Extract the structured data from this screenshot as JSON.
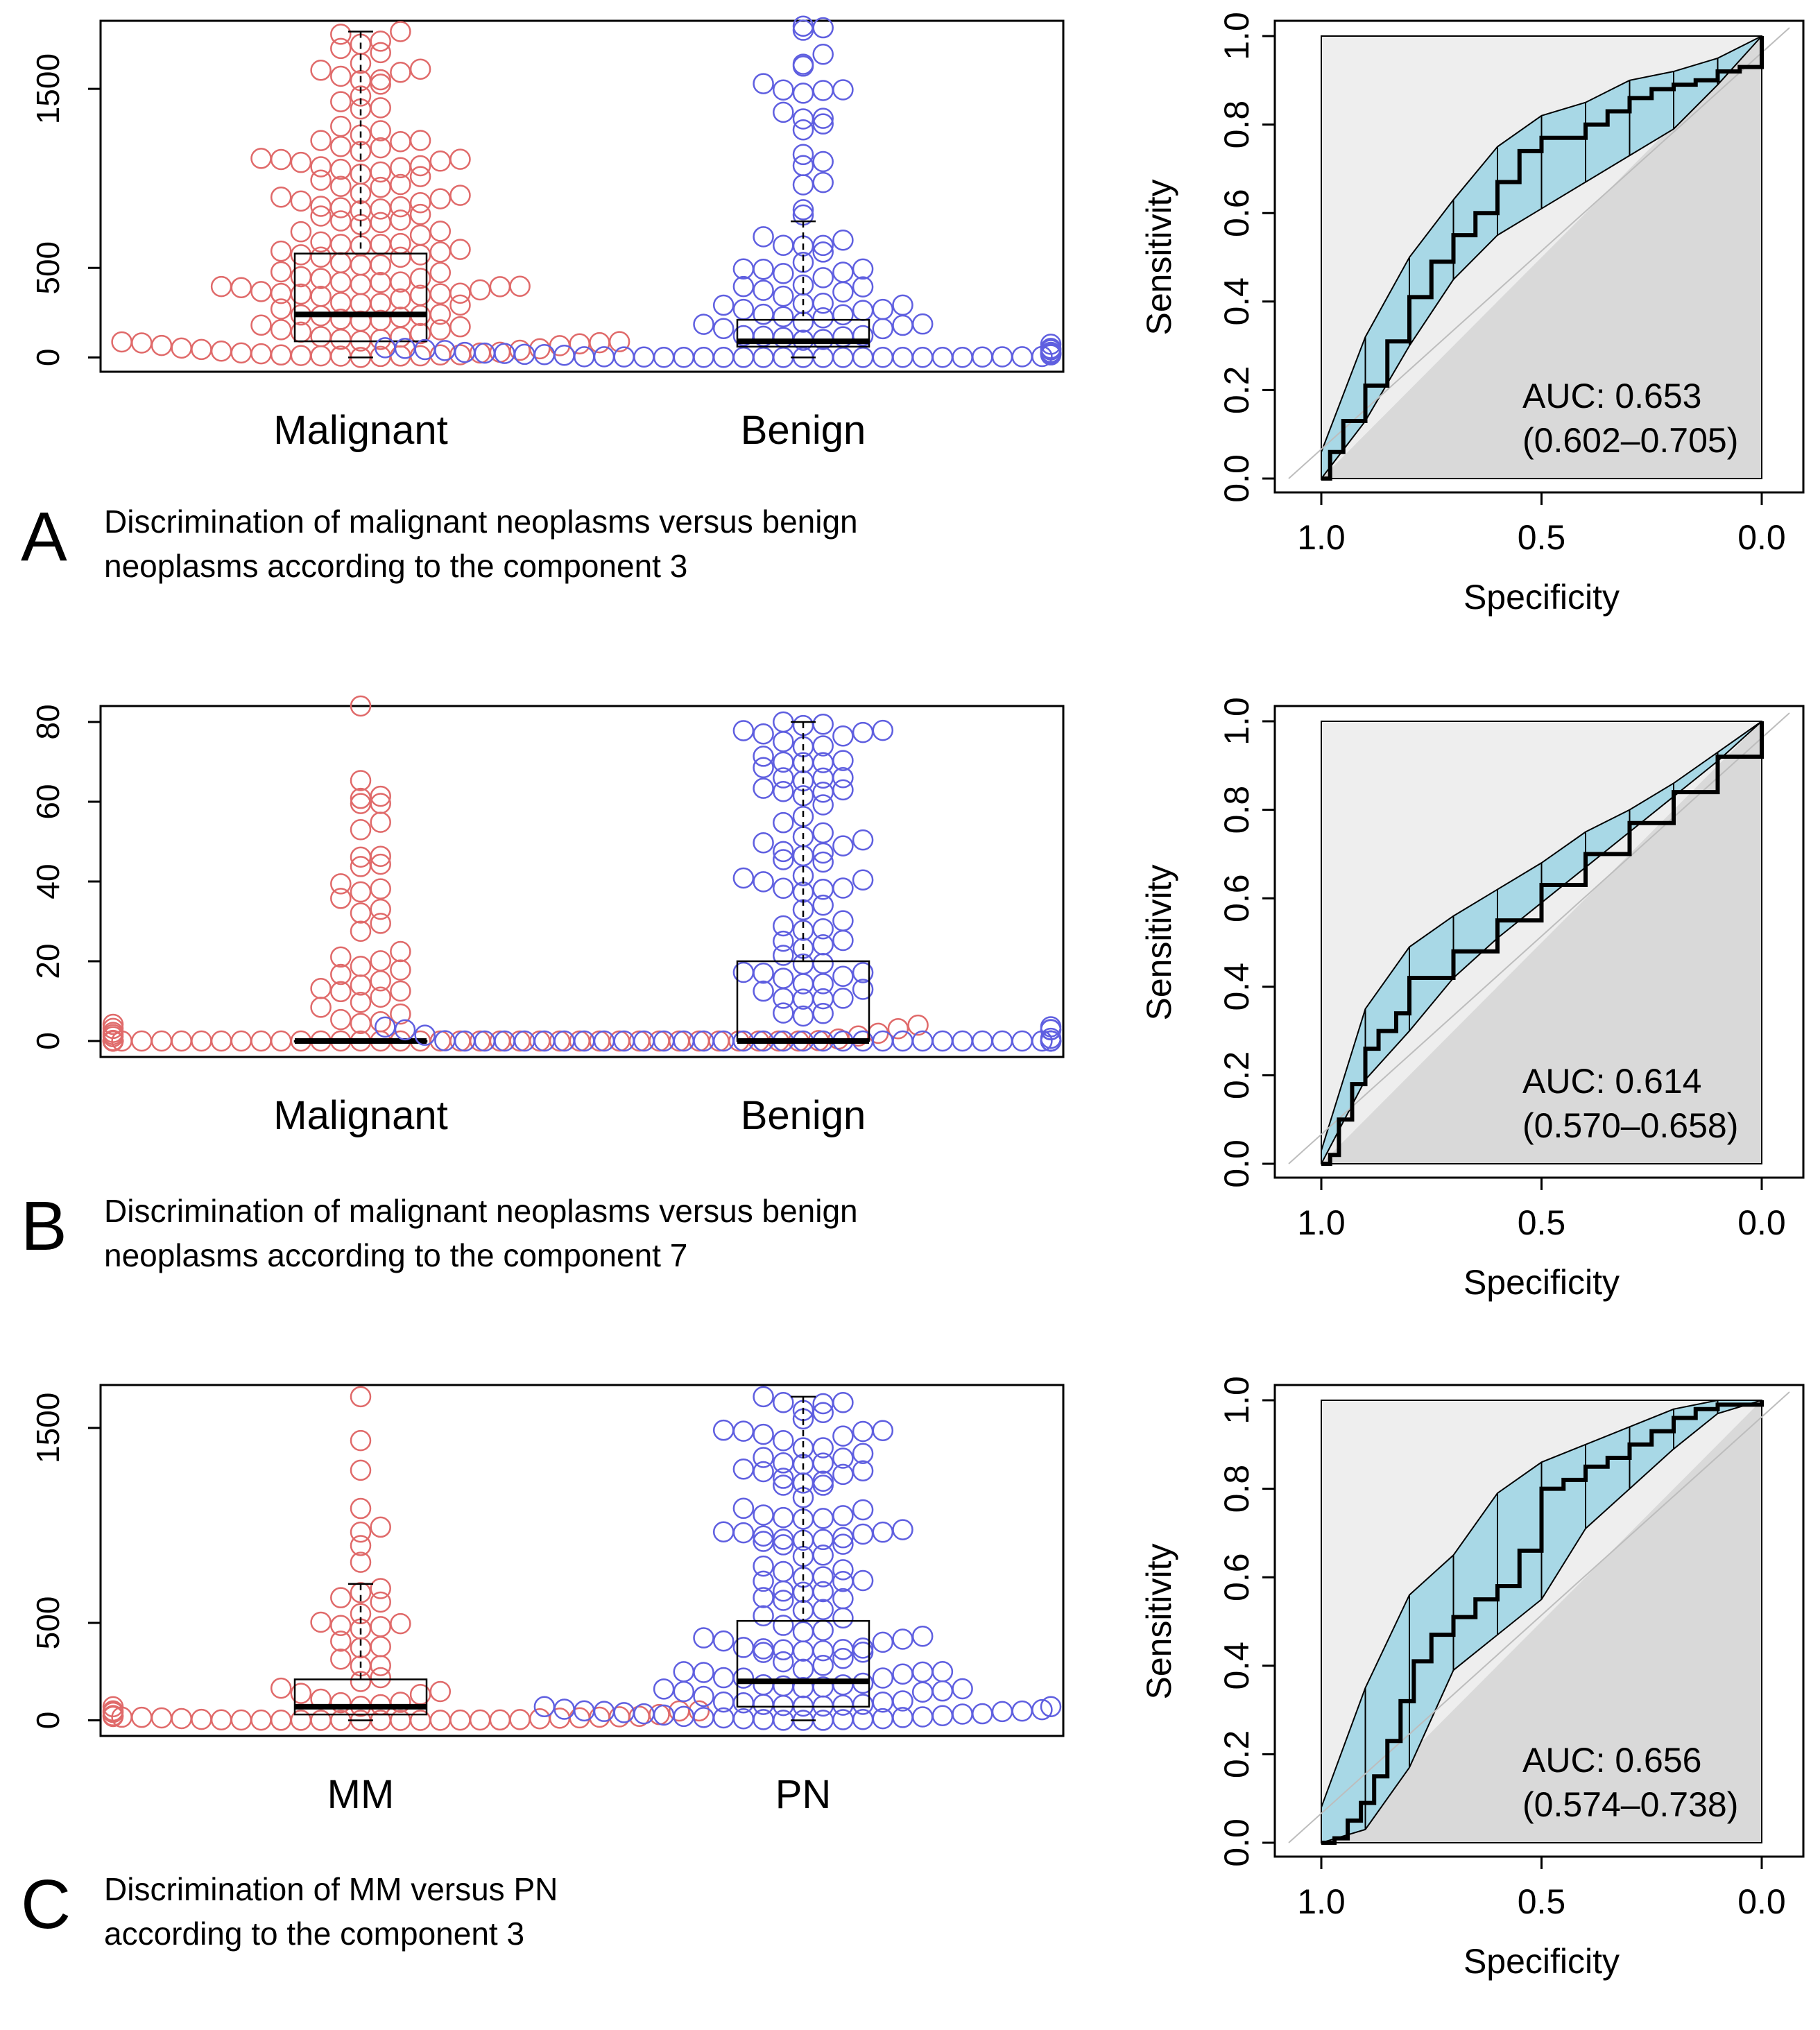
{
  "panels": [
    {
      "letter": "A",
      "caption_lines": [
        "Discrimination of malignant neoplasms versus benign",
        "neoplasms according to the component 3"
      ],
      "beeswarm": {
        "y_ticks": [
          "0",
          "500",
          "1500"
        ],
        "y_tick_values": [
          0,
          500,
          1500
        ],
        "ylim": [
          -80,
          1880
        ],
        "groups": [
          {
            "label": "Malignant",
            "color": "#e06a6a",
            "box": {
              "q1": 90,
              "median": 240,
              "q3": 580,
              "whisker_low": 0,
              "whisker_high": 1820
            },
            "n": 150,
            "max": 1820,
            "seed": 11,
            "dist": "wide"
          },
          {
            "label": "Benign",
            "color": "#5f5fe0",
            "box": {
              "q1": 60,
              "median": 90,
              "q3": 210,
              "whisker_low": 0,
              "whisker_high": 760
            },
            "n": 110,
            "max": 1850,
            "seed": 23,
            "dist": "low"
          }
        ]
      },
      "roc": {
        "auc_label": "AUC: 0.653",
        "ci_label": "(0.602–0.705)",
        "x_ticks": [
          "1.0",
          "0.5",
          "0.0"
        ],
        "y_ticks": [
          "0.0",
          "0.2",
          "0.4",
          "0.6",
          "0.8",
          "1.0"
        ],
        "xlabel": "Specificity",
        "ylabel": "Sensitivity",
        "curve": [
          [
            1.0,
            0.0
          ],
          [
            0.98,
            0.06
          ],
          [
            0.95,
            0.13
          ],
          [
            0.9,
            0.21
          ],
          [
            0.85,
            0.31
          ],
          [
            0.8,
            0.41
          ],
          [
            0.75,
            0.49
          ],
          [
            0.7,
            0.55
          ],
          [
            0.65,
            0.6
          ],
          [
            0.6,
            0.67
          ],
          [
            0.55,
            0.74
          ],
          [
            0.5,
            0.77
          ],
          [
            0.45,
            0.77
          ],
          [
            0.4,
            0.8
          ],
          [
            0.35,
            0.83
          ],
          [
            0.3,
            0.86
          ],
          [
            0.25,
            0.88
          ],
          [
            0.2,
            0.89
          ],
          [
            0.15,
            0.9
          ],
          [
            0.1,
            0.92
          ],
          [
            0.05,
            0.93
          ],
          [
            0.0,
            1.0
          ]
        ],
        "ci_upper": [
          [
            1.0,
            0.06
          ],
          [
            0.9,
            0.32
          ],
          [
            0.8,
            0.5
          ],
          [
            0.7,
            0.63
          ],
          [
            0.6,
            0.75
          ],
          [
            0.5,
            0.82
          ],
          [
            0.4,
            0.85
          ],
          [
            0.3,
            0.9
          ],
          [
            0.2,
            0.92
          ],
          [
            0.1,
            0.95
          ],
          [
            0.0,
            1.0
          ]
        ],
        "ci_lower": [
          [
            1.0,
            0.0
          ],
          [
            0.9,
            0.13
          ],
          [
            0.8,
            0.3
          ],
          [
            0.7,
            0.45
          ],
          [
            0.6,
            0.55
          ],
          [
            0.5,
            0.61
          ],
          [
            0.4,
            0.67
          ],
          [
            0.3,
            0.73
          ],
          [
            0.2,
            0.79
          ],
          [
            0.1,
            0.89
          ],
          [
            0.0,
            1.0
          ]
        ]
      }
    },
    {
      "letter": "B",
      "caption_lines": [
        "Discrimination of malignant neoplasms versus benign",
        "neoplasms according to the component 7"
      ],
      "beeswarm": {
        "y_ticks": [
          "0",
          "20",
          "40",
          "60",
          "80"
        ],
        "y_tick_values": [
          0,
          20,
          40,
          60,
          80
        ],
        "ylim": [
          -4,
          84
        ],
        "groups": [
          {
            "label": "Malignant",
            "color": "#e06a6a",
            "box": {
              "q1": 0,
              "median": 0,
              "q3": 0,
              "whisker_low": 0,
              "whisker_high": 0
            },
            "n": 95,
            "max": 84,
            "seed": 37,
            "dist": "zeros"
          },
          {
            "label": "Benign",
            "color": "#5f5fe0",
            "box": {
              "q1": 0,
              "median": 0,
              "q3": 20,
              "whisker_low": 0,
              "whisker_high": 80
            },
            "n": 120,
            "max": 80,
            "seed": 41,
            "dist": "zeros2"
          }
        ]
      },
      "roc": {
        "auc_label": "AUC: 0.614",
        "ci_label": "(0.570–0.658)",
        "x_ticks": [
          "1.0",
          "0.5",
          "0.0"
        ],
        "y_ticks": [
          "0.0",
          "0.2",
          "0.4",
          "0.6",
          "0.8",
          "1.0"
        ],
        "xlabel": "Specificity",
        "ylabel": "Sensitivity",
        "curve": [
          [
            1.0,
            0.0
          ],
          [
            0.98,
            0.02
          ],
          [
            0.96,
            0.1
          ],
          [
            0.93,
            0.18
          ],
          [
            0.9,
            0.26
          ],
          [
            0.87,
            0.3
          ],
          [
            0.83,
            0.34
          ],
          [
            0.8,
            0.42
          ],
          [
            0.7,
            0.48
          ],
          [
            0.6,
            0.55
          ],
          [
            0.5,
            0.63
          ],
          [
            0.4,
            0.7
          ],
          [
            0.3,
            0.77
          ],
          [
            0.2,
            0.84
          ],
          [
            0.1,
            0.92
          ],
          [
            0.0,
            1.0
          ]
        ],
        "ci_upper": [
          [
            1.0,
            0.03
          ],
          [
            0.9,
            0.35
          ],
          [
            0.8,
            0.49
          ],
          [
            0.7,
            0.56
          ],
          [
            0.6,
            0.62
          ],
          [
            0.5,
            0.68
          ],
          [
            0.4,
            0.75
          ],
          [
            0.3,
            0.8
          ],
          [
            0.2,
            0.86
          ],
          [
            0.1,
            0.93
          ],
          [
            0.0,
            1.0
          ]
        ],
        "ci_lower": [
          [
            1.0,
            0.0
          ],
          [
            0.9,
            0.19
          ],
          [
            0.8,
            0.3
          ],
          [
            0.7,
            0.42
          ],
          [
            0.6,
            0.51
          ],
          [
            0.5,
            0.59
          ],
          [
            0.4,
            0.67
          ],
          [
            0.3,
            0.75
          ],
          [
            0.2,
            0.83
          ],
          [
            0.1,
            0.91
          ],
          [
            0.0,
            1.0
          ]
        ]
      }
    },
    {
      "letter": "C",
      "caption_lines": [
        "Discrimination of MM versus PN",
        "according to the component 3"
      ],
      "beeswarm": {
        "y_ticks": [
          "0",
          "500",
          "1500"
        ],
        "y_tick_values": [
          0,
          500,
          1500
        ],
        "ylim": [
          -80,
          1720
        ],
        "groups": [
          {
            "label": "MM",
            "color": "#e06a6a",
            "box": {
              "q1": 30,
              "median": 70,
              "q3": 210,
              "whisker_low": 0,
              "whisker_high": 700
            },
            "n": 70,
            "max": 1660,
            "seed": 53,
            "dist": "low"
          },
          {
            "label": "PN",
            "color": "#5f5fe0",
            "box": {
              "q1": 70,
              "median": 200,
              "q3": 510,
              "whisker_low": 0,
              "whisker_high": 1660
            },
            "n": 150,
            "max": 1660,
            "seed": 67,
            "dist": "wide"
          }
        ]
      },
      "roc": {
        "auc_label": "AUC: 0.656",
        "ci_label": "(0.574–0.738)",
        "x_ticks": [
          "1.0",
          "0.5",
          "0.0"
        ],
        "y_ticks": [
          "0.0",
          "0.2",
          "0.4",
          "0.6",
          "0.8",
          "1.0"
        ],
        "xlabel": "Specificity",
        "ylabel": "Sensitivity",
        "curve": [
          [
            1.0,
            0.0
          ],
          [
            0.97,
            0.01
          ],
          [
            0.94,
            0.05
          ],
          [
            0.91,
            0.09
          ],
          [
            0.88,
            0.15
          ],
          [
            0.85,
            0.23
          ],
          [
            0.82,
            0.32
          ],
          [
            0.79,
            0.41
          ],
          [
            0.75,
            0.47
          ],
          [
            0.7,
            0.51
          ],
          [
            0.65,
            0.55
          ],
          [
            0.6,
            0.58
          ],
          [
            0.55,
            0.66
          ],
          [
            0.5,
            0.8
          ],
          [
            0.45,
            0.82
          ],
          [
            0.4,
            0.85
          ],
          [
            0.35,
            0.87
          ],
          [
            0.3,
            0.9
          ],
          [
            0.25,
            0.93
          ],
          [
            0.2,
            0.96
          ],
          [
            0.15,
            0.98
          ],
          [
            0.1,
            0.99
          ],
          [
            0.0,
            1.0
          ]
        ],
        "ci_upper": [
          [
            1.0,
            0.08
          ],
          [
            0.9,
            0.35
          ],
          [
            0.8,
            0.56
          ],
          [
            0.7,
            0.65
          ],
          [
            0.6,
            0.79
          ],
          [
            0.5,
            0.86
          ],
          [
            0.4,
            0.9
          ],
          [
            0.3,
            0.94
          ],
          [
            0.2,
            0.98
          ],
          [
            0.1,
            1.0
          ],
          [
            0.0,
            1.0
          ]
        ],
        "ci_lower": [
          [
            1.0,
            0.0
          ],
          [
            0.9,
            0.03
          ],
          [
            0.8,
            0.17
          ],
          [
            0.7,
            0.39
          ],
          [
            0.6,
            0.47
          ],
          [
            0.5,
            0.55
          ],
          [
            0.4,
            0.71
          ],
          [
            0.3,
            0.8
          ],
          [
            0.2,
            0.89
          ],
          [
            0.1,
            0.97
          ],
          [
            0.0,
            1.0
          ]
        ]
      }
    }
  ]
}
